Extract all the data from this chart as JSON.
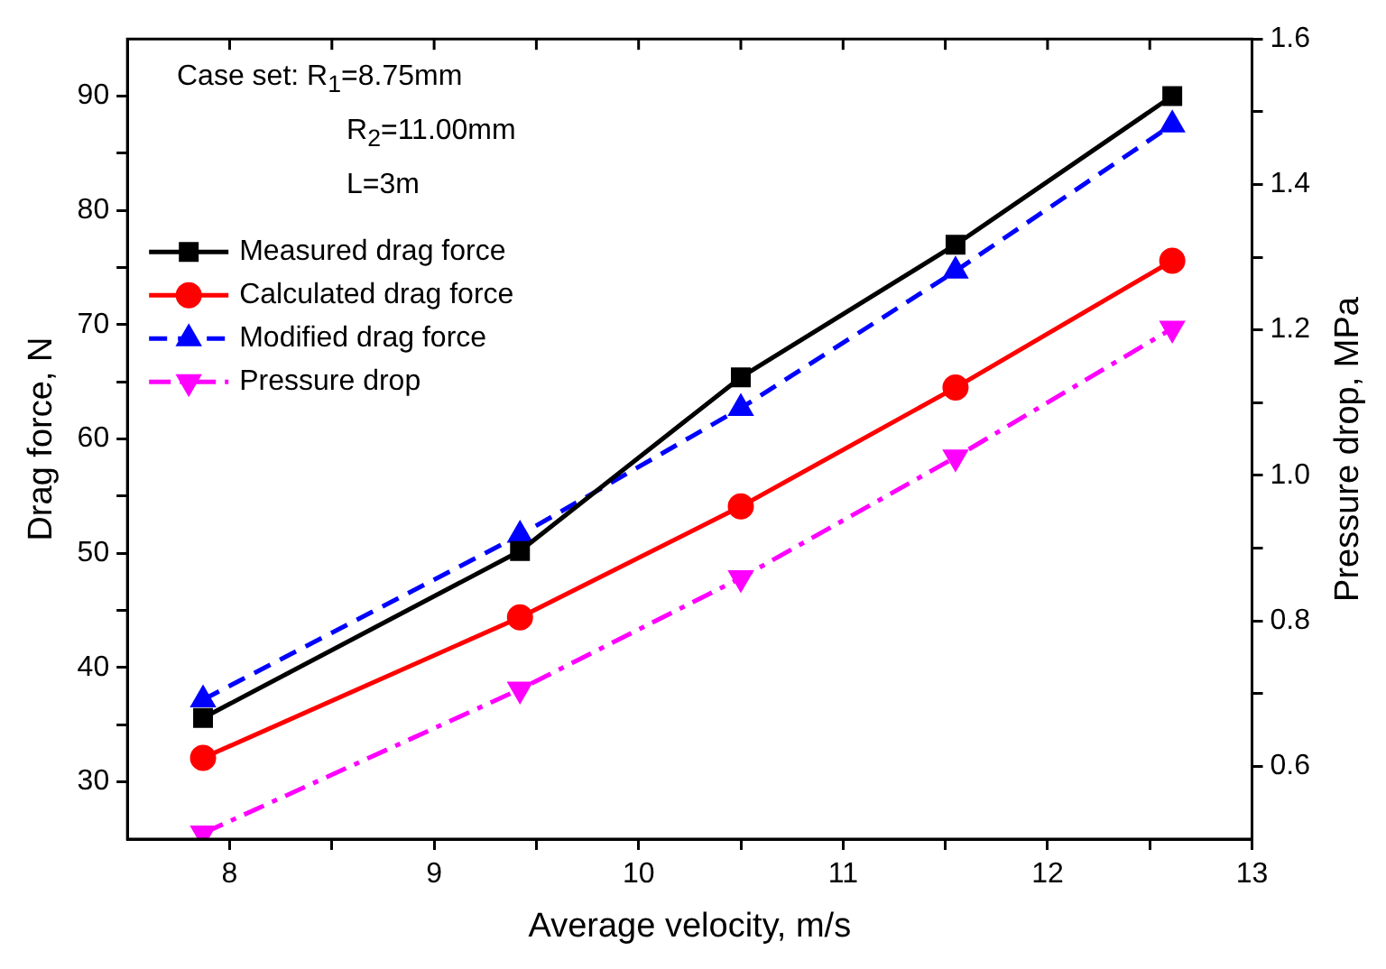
{
  "chart_data": {
    "type": "line",
    "xlabel": "Average velocity, m/s",
    "ylabel": "Drag force, N",
    "y2label": "Pressure drop, MPa",
    "annotations": [
      "Case set: R$_{1}$=8.75mm",
      "R$_{2}$=11.00mm",
      "L=3m"
    ],
    "x": [
      7.87,
      9.42,
      10.5,
      11.55,
      12.61
    ],
    "series": [
      {
        "name": "Measured drag force",
        "color": "#000000",
        "values": [
          35.6,
          50.2,
          65.4,
          77.0,
          90.0
        ],
        "marker": "square",
        "line_style": "solid"
      },
      {
        "name": "Calculated drag force",
        "color": "#ff0000",
        "values": [
          32.1,
          44.4,
          54.1,
          64.5,
          75.6
        ],
        "marker": "circle",
        "line_style": "solid"
      },
      {
        "name": "Modified drag force",
        "color": "#0000ff",
        "values": [
          37.2,
          51.6,
          62.7,
          74.7,
          87.5
        ],
        "marker": "triangle",
        "line_style": "dashed"
      },
      {
        "name": "Pressure drop",
        "color": "#ff00ff",
        "values": [
          0.508,
          0.706,
          0.859,
          1.025,
          1.202
        ],
        "marker": "triangle_down",
        "line_style": "dashdot",
        "axis": "y2"
      }
    ],
    "xlim": [
      7.5,
      13
    ],
    "xticks": [
      8,
      {
        "value": 8.5,
        "label": null
      },
      9,
      {
        "value": 9.5,
        "label": null
      },
      10,
      {
        "value": 10.5,
        "label": null
      },
      11,
      {
        "value": 11.5,
        "label": null
      },
      12,
      {
        "value": 12.5,
        "label": null
      },
      13
    ],
    "ylim": [
      25,
      95
    ],
    "yticks": [
      30,
      {
        "value": 35,
        "label": null
      },
      40,
      {
        "value": 45,
        "label": null
      },
      50,
      {
        "value": 55,
        "label": null
      },
      60,
      {
        "value": 65,
        "label": null
      },
      70,
      {
        "value": 75,
        "label": null
      },
      80,
      {
        "value": 85,
        "label": null
      },
      90
    ],
    "y2lim": [
      0.5,
      1.6
    ],
    "y2ticks": [
      {
        "value": 0.6,
        "label": "0.6"
      },
      {
        "value": 0.7,
        "label": null
      },
      {
        "value": 0.8,
        "label": "0.8"
      },
      {
        "value": 0.9,
        "label": null
      },
      {
        "value": 1.0,
        "label": "1.0"
      },
      {
        "value": 1.1,
        "label": null
      },
      {
        "value": 1.2,
        "label": "1.2"
      },
      {
        "value": 1.3,
        "label": null
      },
      {
        "value": 1.4,
        "label": "1.4"
      },
      {
        "value": 1.5,
        "label": null
      },
      {
        "value": 1.6,
        "label": "1.6"
      }
    ],
    "grid": false,
    "legend": "top left"
  }
}
